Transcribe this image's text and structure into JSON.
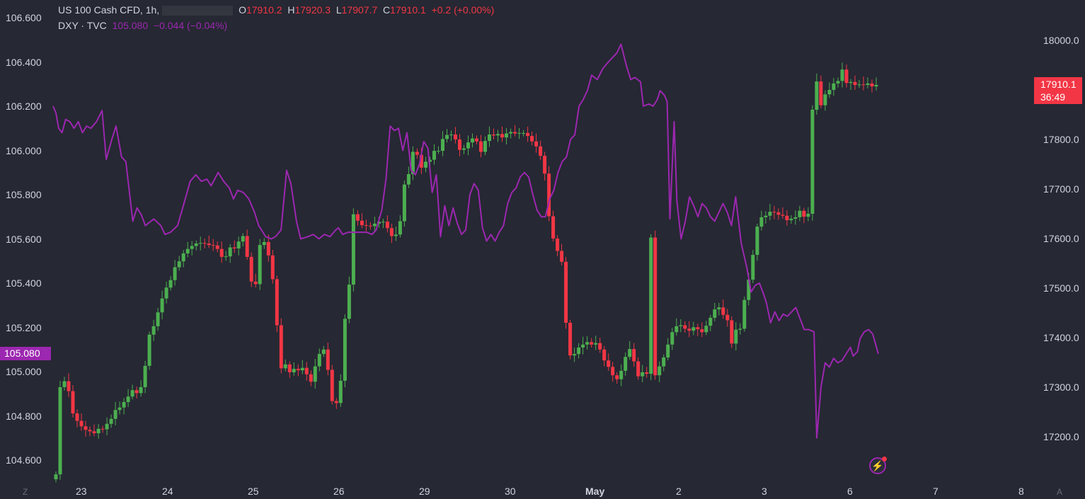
{
  "legend": {
    "symbol": "US 100 Cash CFD, 1h,",
    "o_label": "O",
    "o_value": "17910.2",
    "h_label": "H",
    "h_value": "17920.3",
    "l_label": "L",
    "l_value": "17907.7",
    "c_label": "C",
    "c_value": "17910.1",
    "change": "+0.2 (+0.00%)",
    "dxy_name": "DXY · TVC",
    "dxy_value": "105.080",
    "dxy_change": "−0.044 (−0.04%)"
  },
  "price_tags": {
    "dxy": "105.080",
    "us100_price": "17910.1",
    "us100_countdown": "36:49"
  },
  "corner_labels": {
    "left": "Z",
    "right": "A"
  },
  "colors": {
    "background": "#262833",
    "up": "#4caf50",
    "down": "#f23645",
    "dxy_line": "#9c27b0",
    "text": "#d1d4dc"
  },
  "chart_data": {
    "type": "candlestick+line",
    "x_axis_ticks": [
      "23",
      "24",
      "25",
      "26",
      "29",
      "30",
      "May",
      "2",
      "3",
      "6",
      "7",
      "8"
    ],
    "left_axis": {
      "series": "DXY · TVC",
      "ticks": [
        "106.600",
        "106.400",
        "106.200",
        "106.000",
        "105.800",
        "105.600",
        "105.400",
        "105.200",
        "105.000",
        "104.800",
        "104.600"
      ],
      "range": [
        104.525,
        106.675
      ]
    },
    "right_axis": {
      "series": "US 100 Cash CFD",
      "ticks": [
        "18000.0",
        "17900.0",
        "17800.0",
        "17700.0",
        "17600.0",
        "17500.0",
        "17400.0",
        "17300.0",
        "17200.0"
      ],
      "range": [
        17118,
        18067
      ]
    },
    "dxy_line": {
      "name": "DXY · TVC",
      "points": [
        [
          0,
          106.2
        ],
        [
          0.1,
          106.17
        ],
        [
          0.2,
          106.1
        ],
        [
          0.32,
          106.08
        ],
        [
          0.45,
          106.14
        ],
        [
          0.6,
          106.13
        ],
        [
          0.75,
          106.1
        ],
        [
          0.9,
          106.13
        ],
        [
          1.05,
          106.08
        ],
        [
          1.2,
          106.11
        ],
        [
          1.35,
          106.1
        ],
        [
          1.55,
          106.13
        ],
        [
          1.75,
          106.18
        ],
        [
          1.9,
          105.96
        ],
        [
          2.1,
          106.05
        ],
        [
          2.25,
          106.11
        ],
        [
          2.45,
          105.97
        ],
        [
          2.6,
          105.95
        ],
        [
          2.85,
          105.68
        ],
        [
          3.0,
          105.74
        ],
        [
          3.15,
          105.71
        ],
        [
          3.3,
          105.66
        ],
        [
          3.6,
          105.69
        ],
        [
          3.85,
          105.66
        ],
        [
          4.0,
          105.62
        ],
        [
          4.2,
          105.63
        ],
        [
          4.45,
          105.66
        ],
        [
          4.7,
          105.77
        ],
        [
          4.9,
          105.86
        ],
        [
          5.1,
          105.89
        ],
        [
          5.3,
          105.86
        ],
        [
          5.5,
          105.87
        ],
        [
          5.65,
          105.84
        ],
        [
          5.9,
          105.9
        ],
        [
          6.1,
          105.86
        ],
        [
          6.3,
          105.83
        ],
        [
          6.45,
          105.78
        ],
        [
          6.6,
          105.82
        ],
        [
          6.8,
          105.81
        ],
        [
          7.0,
          105.78
        ],
        [
          7.2,
          105.72
        ],
        [
          7.35,
          105.66
        ],
        [
          7.6,
          105.61
        ],
        [
          7.8,
          105.6
        ],
        [
          7.95,
          105.61
        ],
        [
          8.15,
          105.64
        ],
        [
          8.35,
          105.91
        ],
        [
          8.5,
          105.85
        ],
        [
          8.7,
          105.68
        ],
        [
          8.85,
          105.6
        ],
        [
          9.1,
          105.61
        ],
        [
          9.3,
          105.62
        ],
        [
          9.5,
          105.6
        ],
        [
          9.7,
          105.62
        ],
        [
          9.9,
          105.61
        ],
        [
          10.1,
          105.64
        ],
        [
          10.2,
          105.65
        ],
        [
          10.35,
          105.62
        ],
        [
          10.55,
          105.63
        ],
        [
          10.75,
          105.63
        ],
        [
          11.0,
          105.63
        ],
        [
          11.2,
          105.63
        ],
        [
          11.4,
          105.62
        ],
        [
          11.55,
          105.64
        ],
        [
          11.75,
          105.73
        ],
        [
          11.9,
          105.87
        ],
        [
          12.05,
          106.11
        ],
        [
          12.2,
          106.09
        ],
        [
          12.35,
          106.1
        ],
        [
          12.5,
          106.0
        ],
        [
          12.65,
          106.08
        ],
        [
          12.8,
          105.91
        ],
        [
          12.95,
          105.89
        ],
        [
          13.1,
          105.94
        ],
        [
          13.25,
          106.04
        ],
        [
          13.4,
          106.01
        ],
        [
          13.55,
          105.81
        ],
        [
          13.7,
          105.89
        ],
        [
          13.85,
          105.61
        ],
        [
          14.0,
          105.75
        ],
        [
          14.15,
          105.66
        ],
        [
          14.3,
          105.74
        ],
        [
          14.45,
          105.67
        ],
        [
          14.6,
          105.62
        ],
        [
          14.75,
          105.64
        ],
        [
          14.9,
          105.8
        ],
        [
          15.05,
          105.85
        ],
        [
          15.2,
          105.82
        ],
        [
          15.35,
          105.65
        ],
        [
          15.5,
          105.59
        ],
        [
          15.65,
          105.62
        ],
        [
          15.8,
          105.59
        ],
        [
          15.95,
          105.63
        ],
        [
          16.1,
          105.66
        ],
        [
          16.25,
          105.76
        ],
        [
          16.4,
          105.81
        ],
        [
          16.55,
          105.83
        ],
        [
          16.7,
          105.88
        ],
        [
          16.85,
          105.9
        ],
        [
          17.0,
          105.88
        ],
        [
          17.15,
          105.8
        ],
        [
          17.3,
          105.73
        ],
        [
          17.45,
          105.7
        ],
        [
          17.6,
          105.7
        ],
        [
          17.75,
          105.78
        ],
        [
          17.9,
          105.82
        ],
        [
          18.05,
          105.9
        ],
        [
          18.2,
          105.95
        ],
        [
          18.35,
          105.97
        ],
        [
          18.5,
          106.05
        ],
        [
          18.65,
          106.07
        ],
        [
          18.8,
          106.2
        ],
        [
          18.95,
          106.23
        ],
        [
          19.1,
          106.27
        ],
        [
          19.25,
          106.34
        ],
        [
          19.45,
          106.32
        ],
        [
          19.65,
          106.37
        ],
        [
          19.85,
          106.4
        ],
        [
          20.0,
          106.42
        ],
        [
          20.15,
          106.44
        ],
        [
          20.3,
          106.48
        ],
        [
          20.5,
          106.38
        ],
        [
          20.65,
          106.32
        ],
        [
          20.8,
          106.33
        ],
        [
          21.0,
          106.31
        ],
        [
          21.1,
          106.2
        ],
        [
          21.3,
          106.21
        ],
        [
          21.45,
          106.2
        ],
        [
          21.6,
          106.23
        ],
        [
          21.7,
          106.27
        ],
        [
          21.85,
          106.25
        ],
        [
          21.95,
          106.22
        ],
        [
          22.05,
          105.69
        ],
        [
          22.2,
          106.13
        ],
        [
          22.3,
          105.77
        ],
        [
          22.45,
          105.6
        ],
        [
          22.6,
          105.68
        ],
        [
          22.75,
          105.79
        ],
        [
          22.9,
          105.75
        ],
        [
          23.05,
          105.7
        ],
        [
          23.2,
          105.76
        ],
        [
          23.35,
          105.74
        ],
        [
          23.5,
          105.7
        ],
        [
          23.65,
          105.68
        ],
        [
          23.8,
          105.72
        ],
        [
          23.95,
          105.76
        ],
        [
          24.1,
          105.72
        ],
        [
          24.25,
          105.66
        ],
        [
          24.4,
          105.79
        ],
        [
          24.6,
          105.58
        ],
        [
          24.8,
          105.47
        ],
        [
          24.95,
          105.36
        ],
        [
          25.1,
          105.39
        ],
        [
          25.25,
          105.4
        ],
        [
          25.4,
          105.35
        ],
        [
          25.5,
          105.31
        ],
        [
          25.65,
          105.22
        ],
        [
          25.8,
          105.27
        ],
        [
          25.95,
          105.23
        ],
        [
          26.1,
          105.26
        ],
        [
          26.25,
          105.25
        ],
        [
          26.4,
          105.27
        ],
        [
          26.55,
          105.29
        ],
        [
          26.7,
          105.24
        ],
        [
          26.85,
          105.19
        ],
        [
          27.0,
          105.19
        ],
        [
          27.2,
          105.18
        ],
        [
          27.3,
          104.7
        ],
        [
          27.45,
          104.93
        ],
        [
          27.6,
          105.04
        ],
        [
          27.75,
          105.02
        ],
        [
          27.9,
          105.06
        ],
        [
          28.05,
          105.04
        ],
        [
          28.2,
          105.05
        ],
        [
          28.35,
          105.08
        ],
        [
          28.5,
          105.11
        ],
        [
          28.6,
          105.07
        ],
        [
          28.75,
          105.09
        ],
        [
          28.85,
          105.15
        ],
        [
          29.0,
          105.18
        ],
        [
          29.15,
          105.19
        ],
        [
          29.3,
          105.17
        ],
        [
          29.5,
          105.08
        ]
      ]
    },
    "us100_candles": {
      "name": "US 100 Cash CFD",
      "note": "hourly candles, values estimated from chart",
      "closes": [
        17124,
        17300,
        17312,
        17292,
        17247,
        17232,
        17221,
        17214,
        17211,
        17207,
        17216,
        17215,
        17226,
        17236,
        17254,
        17259,
        17270,
        17281,
        17294,
        17288,
        17300,
        17343,
        17406,
        17423,
        17451,
        17479,
        17501,
        17516,
        17542,
        17554,
        17570,
        17579,
        17585,
        17590,
        17591,
        17590,
        17587,
        17586,
        17579,
        17563,
        17564,
        17582,
        17580,
        17594,
        17605,
        17563,
        17513,
        17508,
        17587,
        17593,
        17566,
        17518,
        17425,
        17338,
        17346,
        17330,
        17337,
        17334,
        17339,
        17326,
        17311,
        17342,
        17367,
        17376,
        17335,
        17272,
        17268,
        17313,
        17438,
        17507,
        17649,
        17636,
        17627,
        17626,
        17625,
        17630,
        17634,
        17634,
        17621,
        17605,
        17608,
        17635,
        17709,
        17730,
        17775,
        17769,
        17743,
        17755,
        17759,
        17777,
        17777,
        17801,
        17809,
        17810,
        17800,
        17779,
        17782,
        17794,
        17802,
        17796,
        17775,
        17797,
        17810,
        17808,
        17811,
        17804,
        17812,
        17815,
        17812,
        17813,
        17813,
        17807,
        17796,
        17786,
        17767,
        17731,
        17645,
        17600,
        17575,
        17553,
        17430,
        17364,
        17367,
        17380,
        17386,
        17391,
        17386,
        17389,
        17376,
        17354,
        17341,
        17324,
        17316,
        17333,
        17361,
        17377,
        17352,
        17322,
        17330,
        17327,
        17602,
        17324,
        17342,
        17360,
        17386,
        17411,
        17423,
        17425,
        17418,
        17414,
        17421,
        17417,
        17411,
        17424,
        17440,
        17457,
        17461,
        17446,
        17435,
        17388,
        17416,
        17418,
        17476,
        17517,
        17567,
        17624,
        17643,
        17646,
        17654,
        17653,
        17648,
        17646,
        17637,
        17640,
        17643,
        17656,
        17644,
        17650,
        17860,
        17917,
        17869,
        17891,
        17900,
        17913,
        17918,
        17941,
        17914,
        17916,
        17910,
        17911,
        17910,
        17913,
        17907,
        17910
      ]
    }
  }
}
